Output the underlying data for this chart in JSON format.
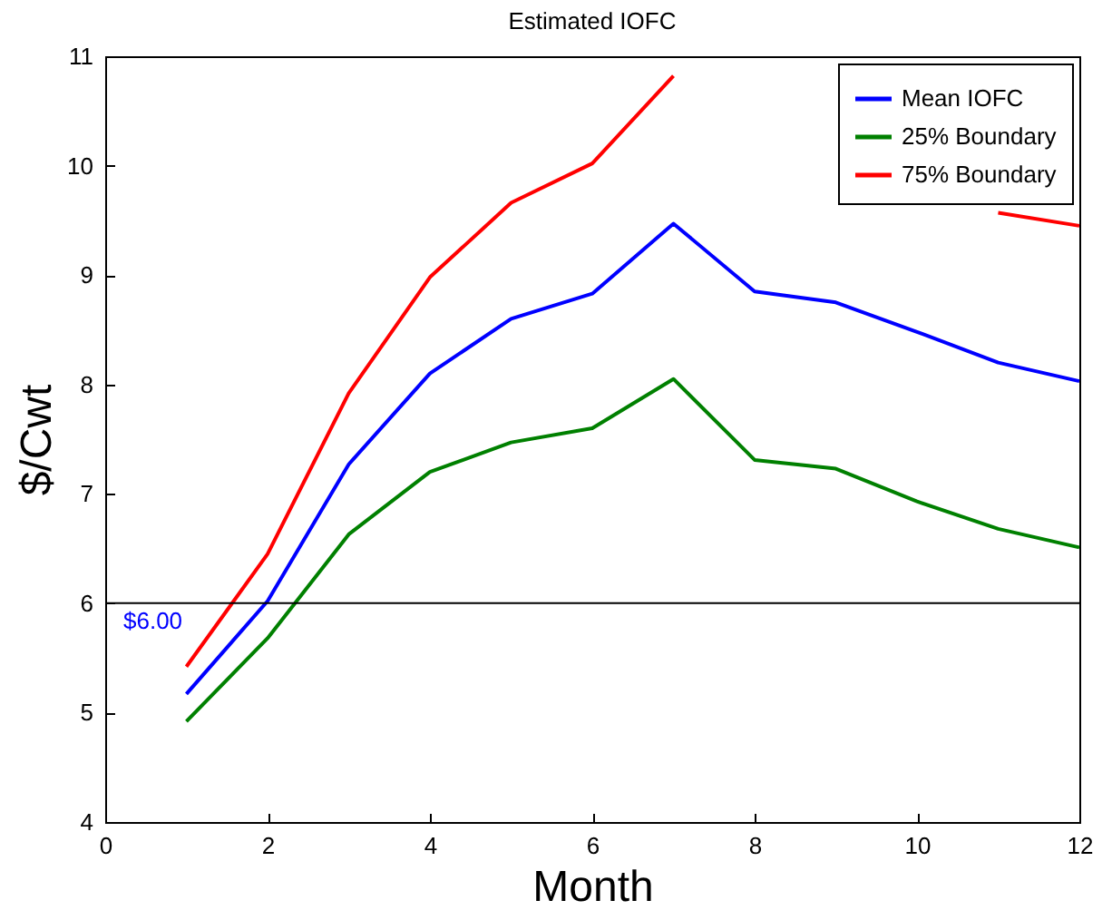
{
  "chart_data": {
    "type": "line",
    "title": "Estimated IOFC",
    "xlabel": "Month",
    "ylabel": "$/Cwt",
    "x": [
      1,
      2,
      3,
      4,
      5,
      6,
      7,
      8,
      9,
      10,
      11,
      12
    ],
    "xlim": [
      0,
      12
    ],
    "xticks": [
      0,
      2,
      4,
      6,
      8,
      10,
      12
    ],
    "ylim": [
      4,
      11
    ],
    "yticks": [
      4,
      5,
      6,
      7,
      8,
      9,
      10,
      11
    ],
    "grid": false,
    "legend": "top right",
    "line_style": "solid",
    "series": [
      {
        "name": "Mean IOFC",
        "color": "#0000ff",
        "values": [
          5.17,
          6.02,
          7.27,
          8.1,
          8.6,
          8.83,
          9.47,
          8.85,
          8.75,
          8.48,
          8.2,
          8.03
        ]
      },
      {
        "name": "25% Boundary",
        "color": "#008000",
        "values": [
          4.92,
          5.68,
          6.63,
          7.2,
          7.47,
          7.6,
          8.05,
          7.31,
          7.23,
          6.93,
          6.68,
          6.51
        ]
      },
      {
        "name": "75% Boundary",
        "color": "#ff0000",
        "values": [
          5.42,
          6.45,
          7.92,
          8.98,
          9.66,
          10.02,
          10.82,
          null,
          null,
          null,
          9.57,
          9.45
        ]
      }
    ],
    "ref_lines": [
      {
        "axis": "y",
        "value": 6,
        "label": "$6.00"
      }
    ]
  }
}
